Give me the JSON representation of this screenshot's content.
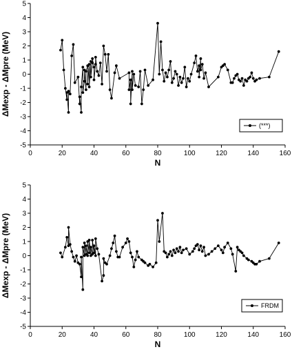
{
  "chart_data": [
    {
      "type": "line",
      "xlabel": "N",
      "ylabel": "ΔMexp - ΔMpre (MeV)",
      "xlim": [
        0,
        160
      ],
      "ylim": [
        -5,
        5
      ],
      "xticks": [
        "0",
        "20",
        "40",
        "60",
        "80",
        "100",
        "120",
        "140",
        "160"
      ],
      "yticks": [
        "5",
        "4",
        "3",
        "2",
        "1",
        "0",
        "-1",
        "-2",
        "-3",
        "-4",
        "-5"
      ],
      "grid": false,
      "legend_position": "lower-right",
      "series": [
        {
          "name": "(***)",
          "color": "#000000",
          "marker": "circle",
          "points": [
            [
              19,
              1.7
            ],
            [
              20,
              2.4
            ],
            [
              21,
              0.3
            ],
            [
              22,
              -1.0
            ],
            [
              23,
              -1.8
            ],
            [
              23,
              -1.3
            ],
            [
              24,
              -2.7
            ],
            [
              24,
              -1.2
            ],
            [
              25,
              -1.4
            ],
            [
              26,
              1.3
            ],
            [
              27,
              2.1
            ],
            [
              28,
              -0.6
            ],
            [
              30,
              -0.2
            ],
            [
              31,
              -2.1
            ],
            [
              31,
              -1.6
            ],
            [
              32,
              -2.7
            ],
            [
              32,
              -0.9
            ],
            [
              33,
              0.5
            ],
            [
              33,
              -1.3
            ],
            [
              34,
              -0.5
            ],
            [
              34,
              0.3
            ],
            [
              35,
              -1.1
            ],
            [
              35,
              0.2
            ],
            [
              36,
              0.6
            ],
            [
              36,
              -0.7
            ],
            [
              37,
              0.7
            ],
            [
              37,
              -0.9
            ],
            [
              38,
              0.9
            ],
            [
              38,
              -0.2
            ],
            [
              39,
              0.8
            ],
            [
              39,
              1.1
            ],
            [
              40,
              0.5
            ],
            [
              40,
              -0.4
            ],
            [
              41,
              0.7
            ],
            [
              41,
              1.2
            ],
            [
              42,
              0.2
            ],
            [
              43,
              -0.1
            ],
            [
              44,
              0.8
            ],
            [
              45,
              -0.7
            ],
            [
              46,
              2.0
            ],
            [
              47,
              1.4
            ],
            [
              48,
              0.2
            ],
            [
              49,
              1.4
            ],
            [
              50,
              -1.1
            ],
            [
              51,
              -1.7
            ],
            [
              53,
              0.1
            ],
            [
              54,
              0.6
            ],
            [
              56,
              -0.3
            ],
            [
              62,
              0.1
            ],
            [
              62,
              -1.1
            ],
            [
              63,
              -0.4
            ],
            [
              63,
              -2.1
            ],
            [
              64,
              0.2
            ],
            [
              64,
              -1.1
            ],
            [
              65,
              0.0
            ],
            [
              66,
              -0.8
            ],
            [
              68,
              -0.9
            ],
            [
              69,
              0.2
            ],
            [
              70,
              -2.1
            ],
            [
              71,
              -1.1
            ],
            [
              72,
              0.3
            ],
            [
              74,
              -0.8
            ],
            [
              77,
              -0.4
            ],
            [
              80,
              3.6
            ],
            [
              81,
              0.0
            ],
            [
              82,
              2.3
            ],
            [
              83,
              0.3
            ],
            [
              84,
              -0.5
            ],
            [
              85,
              0.1
            ],
            [
              86,
              -0.2
            ],
            [
              87,
              0.3
            ],
            [
              88,
              0.9
            ],
            [
              89,
              -0.6
            ],
            [
              90,
              -0.3
            ],
            [
              91,
              0.2
            ],
            [
              92,
              0.0
            ],
            [
              93,
              -0.8
            ],
            [
              94,
              -0.2
            ],
            [
              95,
              -0.6
            ],
            [
              96,
              -0.3
            ],
            [
              97,
              0.5
            ],
            [
              98,
              -0.9
            ],
            [
              99,
              -0.3
            ],
            [
              100,
              -0.5
            ],
            [
              101,
              0.0
            ],
            [
              103,
              0.8
            ],
            [
              104,
              1.3
            ],
            [
              105,
              0.2
            ],
            [
              106,
              0.6
            ],
            [
              106,
              -0.2
            ],
            [
              107,
              1.1
            ],
            [
              107,
              0.3
            ],
            [
              108,
              0.7
            ],
            [
              109,
              -0.3
            ],
            [
              110,
              0.1
            ],
            [
              112,
              -0.9
            ],
            [
              118,
              -0.2
            ],
            [
              120,
              0.5
            ],
            [
              121,
              0.6
            ],
            [
              122,
              0.7
            ],
            [
              124,
              0.3
            ],
            [
              126,
              -0.6
            ],
            [
              127,
              -0.6
            ],
            [
              128,
              -0.3
            ],
            [
              129,
              -0.1
            ],
            [
              130,
              0.0
            ],
            [
              131,
              -0.4
            ],
            [
              132,
              -0.5
            ],
            [
              133,
              -0.3
            ],
            [
              134,
              -0.8
            ],
            [
              135,
              -0.4
            ],
            [
              136,
              -0.5
            ],
            [
              137,
              -0.3
            ],
            [
              138,
              -0.2
            ],
            [
              139,
              0.1
            ],
            [
              140,
              -0.3
            ],
            [
              141,
              -0.5
            ],
            [
              142,
              -0.4
            ],
            [
              144,
              -0.3
            ],
            [
              150,
              -0.2
            ],
            [
              156,
              1.6
            ]
          ]
        }
      ]
    },
    {
      "type": "line",
      "xlabel": "N",
      "ylabel": "ΔMexp - ΔMpre (MeV)",
      "xlim": [
        0,
        160
      ],
      "ylim": [
        -5,
        5
      ],
      "xticks": [
        "0",
        "20",
        "40",
        "60",
        "80",
        "100",
        "120",
        "140",
        "160"
      ],
      "yticks": [
        "5",
        "4",
        "3",
        "2",
        "1",
        "0",
        "-1",
        "-2",
        "-3",
        "-4",
        "-5"
      ],
      "grid": false,
      "legend_position": "lower-right",
      "series": [
        {
          "name": "FRDM",
          "color": "#000000",
          "marker": "circle",
          "points": [
            [
              19,
              0.2
            ],
            [
              20,
              -0.1
            ],
            [
              22,
              0.6
            ],
            [
              23,
              1.3
            ],
            [
              24,
              0.7
            ],
            [
              24,
              2.0
            ],
            [
              25,
              0.8
            ],
            [
              26,
              0.3
            ],
            [
              27,
              -0.1
            ],
            [
              28,
              -0.4
            ],
            [
              29,
              0.0
            ],
            [
              30,
              -0.5
            ],
            [
              31,
              -0.6
            ],
            [
              32,
              -1.5
            ],
            [
              32,
              -0.1
            ],
            [
              33,
              -2.4
            ],
            [
              33,
              0.6
            ],
            [
              34,
              0.0
            ],
            [
              34,
              0.9
            ],
            [
              35,
              0.1
            ],
            [
              35,
              0.7
            ],
            [
              36,
              0.0
            ],
            [
              36,
              1.0
            ],
            [
              37,
              0.2
            ],
            [
              37,
              1.1
            ],
            [
              38,
              0.0
            ],
            [
              38,
              0.6
            ],
            [
              39,
              0.1
            ],
            [
              39,
              1.1
            ],
            [
              40,
              0.2
            ],
            [
              40,
              0.7
            ],
            [
              41,
              0.0
            ],
            [
              41,
              1.2
            ],
            [
              42,
              0.5
            ],
            [
              43,
              0.1
            ],
            [
              45,
              -1.8
            ],
            [
              46,
              -1.4
            ],
            [
              46,
              -0.2
            ],
            [
              47,
              -0.5
            ],
            [
              48,
              -0.6
            ],
            [
              50,
              0.0
            ],
            [
              51,
              0.5
            ],
            [
              52,
              0.9
            ],
            [
              53,
              1.4
            ],
            [
              54,
              0.3
            ],
            [
              55,
              -0.1
            ],
            [
              56,
              -0.1
            ],
            [
              58,
              0.6
            ],
            [
              60,
              0.9
            ],
            [
              61,
              1.2
            ],
            [
              62,
              1.0
            ],
            [
              63,
              0.2
            ],
            [
              64,
              -0.1
            ],
            [
              65,
              -0.8
            ],
            [
              66,
              -0.3
            ],
            [
              67,
              0.3
            ],
            [
              68,
              -0.1
            ],
            [
              70,
              -0.3
            ],
            [
              71,
              -0.4
            ],
            [
              72,
              -0.5
            ],
            [
              74,
              -0.7
            ],
            [
              75,
              -0.6
            ],
            [
              77,
              -0.8
            ],
            [
              79,
              -0.5
            ],
            [
              80,
              2.5
            ],
            [
              81,
              1.0
            ],
            [
              83,
              3.0
            ],
            [
              84,
              0.3
            ],
            [
              85,
              0.2
            ],
            [
              86,
              -0.1
            ],
            [
              87,
              0.1
            ],
            [
              88,
              0.3
            ],
            [
              89,
              0.0
            ],
            [
              90,
              0.4
            ],
            [
              91,
              0.2
            ],
            [
              92,
              0.5
            ],
            [
              93,
              0.3
            ],
            [
              94,
              0.6
            ],
            [
              95,
              0.2
            ],
            [
              96,
              0.4
            ],
            [
              98,
              0.5
            ],
            [
              100,
              0.1
            ],
            [
              102,
              0.3
            ],
            [
              103,
              0.5
            ],
            [
              104,
              0.7
            ],
            [
              105,
              0.8
            ],
            [
              106,
              0.4
            ],
            [
              107,
              0.7
            ],
            [
              108,
              0.3
            ],
            [
              109,
              0.6
            ],
            [
              110,
              0.0
            ],
            [
              112,
              0.1
            ],
            [
              114,
              0.3
            ],
            [
              116,
              0.5
            ],
            [
              118,
              0.7
            ],
            [
              120,
              0.4
            ],
            [
              121,
              0.2
            ],
            [
              122,
              0.6
            ],
            [
              124,
              0.9
            ],
            [
              126,
              0.5
            ],
            [
              127,
              0.1
            ],
            [
              129,
              -1.1
            ],
            [
              130,
              0.6
            ],
            [
              131,
              0.4
            ],
            [
              132,
              0.3
            ],
            [
              133,
              0.2
            ],
            [
              134,
              0.0
            ],
            [
              136,
              -0.2
            ],
            [
              137,
              -0.3
            ],
            [
              139,
              -0.4
            ],
            [
              140,
              -0.5
            ],
            [
              141,
              -0.6
            ],
            [
              142,
              -0.6
            ],
            [
              144,
              -0.4
            ],
            [
              150,
              -0.2
            ],
            [
              156,
              0.9
            ]
          ]
        }
      ]
    }
  ]
}
